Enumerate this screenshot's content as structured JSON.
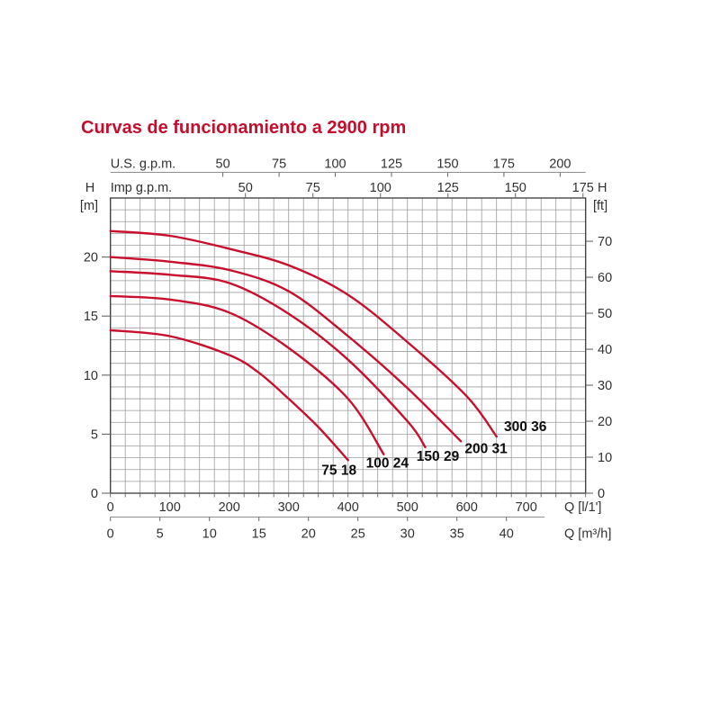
{
  "title": {
    "text": "Curvas de funcionamiento a 2900 rpm",
    "color": "#c60d2c"
  },
  "chart_data": {
    "type": "line",
    "title": "Curvas de funcionamiento a 2900 rpm",
    "grid": true,
    "legend": "none",
    "axes": {
      "top_us_gpm": {
        "label": "U.S. g.p.m.",
        "ticks": [
          50,
          75,
          100,
          125,
          150,
          175,
          200
        ],
        "lpm_per_unit": 3.7854
      },
      "top_imp_gpm": {
        "label": "Imp g.p.m.",
        "ticks": [
          50,
          75,
          100,
          125,
          150,
          175
        ],
        "lpm_per_unit": 4.5461
      },
      "left_m": {
        "label": "H",
        "unit": "[m]",
        "ticks": [
          0,
          5,
          10,
          15,
          20
        ],
        "range": [
          0,
          25
        ],
        "grid_step": 1
      },
      "right_ft": {
        "label": "H",
        "unit": "[ft]",
        "ticks": [
          0,
          10,
          20,
          30,
          40,
          50,
          60,
          70
        ],
        "m_per_unit": 0.3048
      },
      "bottom_lpm": {
        "label": "Q [l/1']",
        "ticks": [
          0,
          100,
          200,
          300,
          400,
          500,
          600,
          700
        ],
        "range": [
          0,
          800
        ],
        "grid_step": 25
      },
      "bottom_m3h": {
        "label": "Q [m³/h]",
        "ticks": [
          0,
          5,
          10,
          15,
          20,
          25,
          30,
          35,
          40
        ],
        "lpm_per_unit": 16.6667
      }
    },
    "series": [
      {
        "name": "75 18",
        "points": [
          [
            0,
            13.8
          ],
          [
            100,
            13.3
          ],
          [
            200,
            11.7
          ],
          [
            250,
            10.2
          ],
          [
            300,
            8.0
          ],
          [
            350,
            5.6
          ],
          [
            400,
            2.8
          ]
        ]
      },
      {
        "name": "100 24",
        "points": [
          [
            0,
            16.7
          ],
          [
            100,
            16.4
          ],
          [
            200,
            15.3
          ],
          [
            300,
            12.3
          ],
          [
            400,
            8.0
          ],
          [
            460,
            3.3
          ]
        ]
      },
      {
        "name": "150 29",
        "points": [
          [
            0,
            18.8
          ],
          [
            100,
            18.5
          ],
          [
            200,
            17.8
          ],
          [
            300,
            15.2
          ],
          [
            400,
            11.3
          ],
          [
            500,
            6.1
          ],
          [
            530,
            3.9
          ]
        ]
      },
      {
        "name": "200 31",
        "points": [
          [
            0,
            20.0
          ],
          [
            100,
            19.6
          ],
          [
            200,
            18.9
          ],
          [
            300,
            17.1
          ],
          [
            400,
            13.3
          ],
          [
            500,
            8.9
          ],
          [
            590,
            4.4
          ]
        ]
      },
      {
        "name": "300 36",
        "points": [
          [
            0,
            22.2
          ],
          [
            100,
            21.8
          ],
          [
            200,
            20.7
          ],
          [
            300,
            19.3
          ],
          [
            400,
            16.8
          ],
          [
            500,
            12.8
          ],
          [
            600,
            8.2
          ],
          [
            650,
            4.8
          ]
        ]
      }
    ],
    "colors": {
      "curve": "#c8102e",
      "grid": "#9d9d9d",
      "border": "#3a3a3a",
      "axis_line": "#8f8f8f",
      "tick": "#666666",
      "text": "#303030",
      "series_label": "#0d0d0d"
    }
  }
}
